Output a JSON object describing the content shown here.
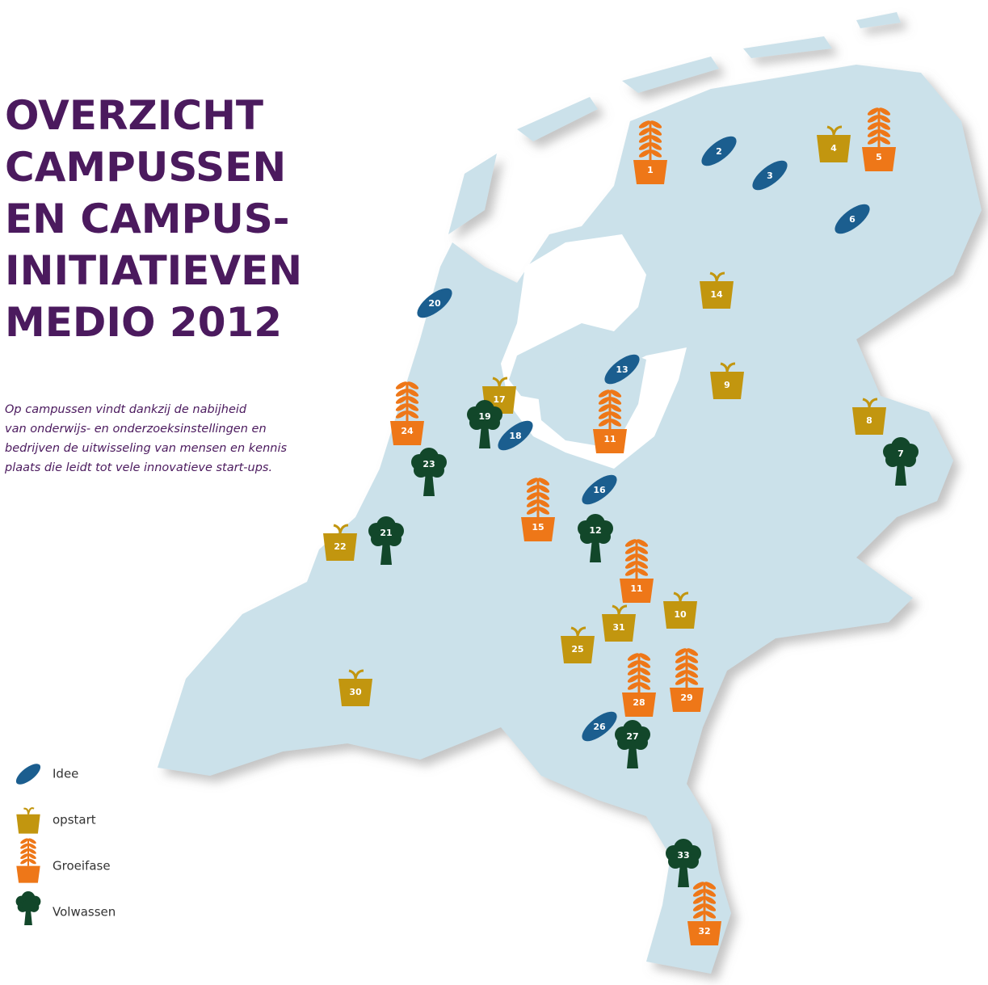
{
  "title_lines": [
    "OVERZICHT",
    "CAMPUSSEN",
    "EN CAMPUS-",
    "INITIATIEVEN",
    "MEDIO 2012"
  ],
  "subtitle_lines": [
    "Op campussen vindt dankzij de nabijheid",
    "van onderwijs- en onderzoeksinstellingen en",
    "bedrijven de uitwisseling van mensen en kennis",
    "plaats die leidt tot vele innovatieve start-ups."
  ],
  "legend": [
    {
      "stage": "idee",
      "label": "Idee"
    },
    {
      "stage": "opstart",
      "label": "opstart"
    },
    {
      "stage": "groei",
      "label": "Groeifase"
    },
    {
      "stage": "volwassen",
      "label": "Volwassen"
    }
  ],
  "markers": [
    {
      "label": "1",
      "stage": "groei"
    },
    {
      "label": "2",
      "stage": "idee"
    },
    {
      "label": "3",
      "stage": "idee"
    },
    {
      "label": "4",
      "stage": "opstart"
    },
    {
      "label": "5",
      "stage": "groei"
    },
    {
      "label": "6",
      "stage": "idee"
    },
    {
      "label": "14",
      "stage": "opstart"
    },
    {
      "label": "20",
      "stage": "idee"
    },
    {
      "label": "13",
      "stage": "idee"
    },
    {
      "label": "9",
      "stage": "opstart"
    },
    {
      "label": "17",
      "stage": "opstart"
    },
    {
      "label": "19",
      "stage": "volwassen"
    },
    {
      "label": "24",
      "stage": "groei"
    },
    {
      "label": "18",
      "stage": "idee"
    },
    {
      "label": "11",
      "stage": "groei"
    },
    {
      "label": "8",
      "stage": "opstart"
    },
    {
      "label": "7",
      "stage": "volwassen"
    },
    {
      "label": "23",
      "stage": "volwassen"
    },
    {
      "label": "16",
      "stage": "idee"
    },
    {
      "label": "15",
      "stage": "groei"
    },
    {
      "label": "12",
      "stage": "volwassen"
    },
    {
      "label": "21",
      "stage": "volwassen"
    },
    {
      "label": "22",
      "stage": "opstart"
    },
    {
      "label": "11",
      "stage": "groei"
    },
    {
      "label": "10",
      "stage": "opstart"
    },
    {
      "label": "31",
      "stage": "opstart"
    },
    {
      "label": "25",
      "stage": "opstart"
    },
    {
      "label": "28",
      "stage": "groei"
    },
    {
      "label": "29",
      "stage": "groei"
    },
    {
      "label": "30",
      "stage": "opstart"
    },
    {
      "label": "26",
      "stage": "idee"
    },
    {
      "label": "27",
      "stage": "volwassen"
    },
    {
      "label": "33",
      "stage": "volwassen"
    },
    {
      "label": "32",
      "stage": "groei"
    }
  ]
}
